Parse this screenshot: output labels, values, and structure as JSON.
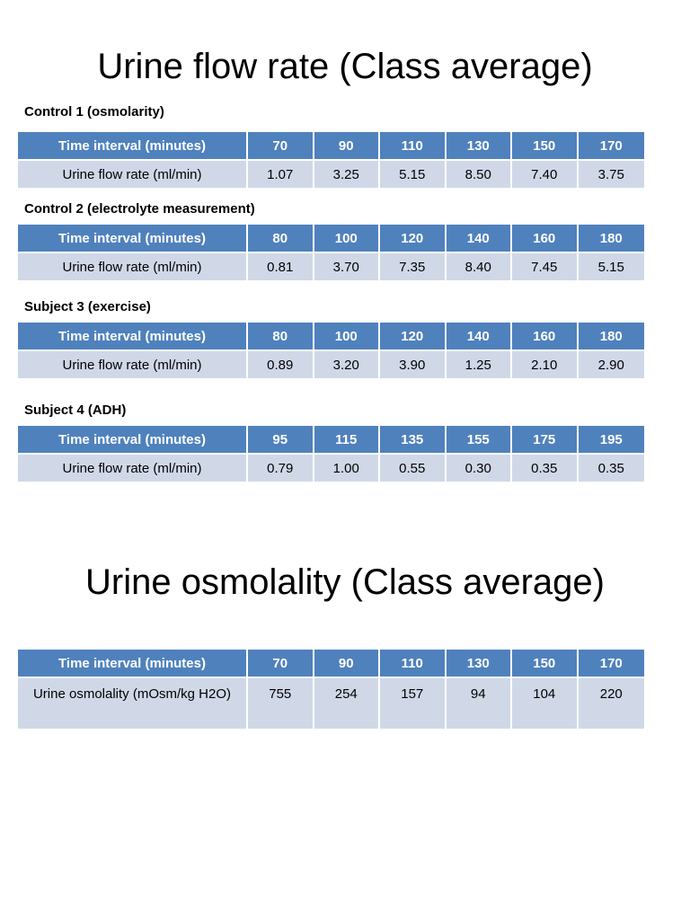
{
  "flow_title": "Urine flow rate (Class average)",
  "flow_tables": [
    {
      "caption": "Control 1 (osmolarity)",
      "header_label": "Time interval (minutes)",
      "row_label": "Urine flow rate (ml/min)",
      "times": [
        "70",
        "90",
        "110",
        "130",
        "150",
        "170"
      ],
      "values": [
        "1.07",
        "3.25",
        "5.15",
        "8.50",
        "7.40",
        "3.75"
      ]
    },
    {
      "caption": "Control 2 (electrolyte measurement)",
      "header_label": "Time interval (minutes)",
      "row_label": "Urine flow rate (ml/min)",
      "times": [
        "80",
        "100",
        "120",
        "140",
        "160",
        "180"
      ],
      "values": [
        "0.81",
        "3.70",
        "7.35",
        "8.40",
        "7.45",
        "5.15"
      ]
    },
    {
      "caption": "Subject 3 (exercise)",
      "header_label": "Time interval (minutes)",
      "row_label": "Urine flow rate (ml/min)",
      "times": [
        "80",
        "100",
        "120",
        "140",
        "160",
        "180"
      ],
      "values": [
        "0.89",
        "3.20",
        "3.90",
        "1.25",
        "2.10",
        "2.90"
      ]
    },
    {
      "caption": "Subject 4 (ADH)",
      "header_label": "Time interval (minutes)",
      "row_label": "Urine flow rate (ml/min)",
      "times": [
        "95",
        "115",
        "135",
        "155",
        "175",
        "195"
      ],
      "values": [
        "0.79",
        "1.00",
        "0.55",
        "0.30",
        "0.35",
        "0.35"
      ]
    }
  ],
  "osmo_title": "Urine osmolality (Class average)",
  "osmo_table": {
    "header_label": "Time interval (minutes)",
    "row_label": "Urine osmolality (mOsm/kg H2O)",
    "times": [
      "70",
      "90",
      "110",
      "130",
      "150",
      "170"
    ],
    "values": [
      "755",
      "254",
      "157",
      "94",
      "104",
      "220"
    ]
  },
  "colors": {
    "header_fill": "#4f81bd",
    "row_fill": "#d0d8e8"
  }
}
